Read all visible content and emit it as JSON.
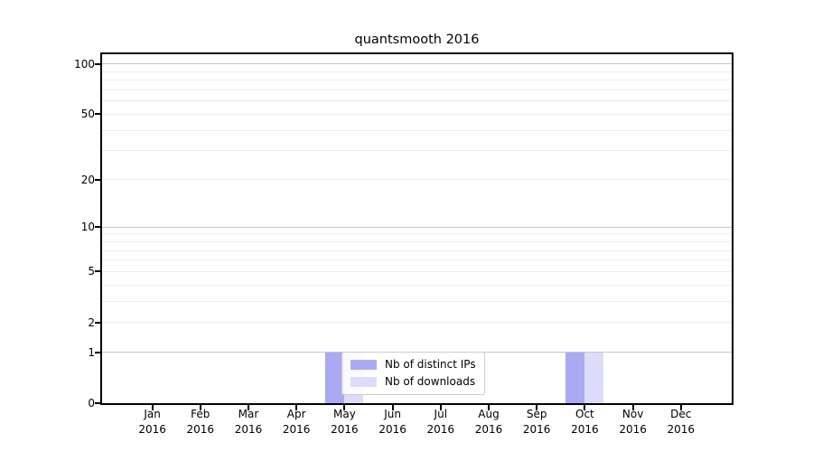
{
  "title": "quantsmooth 2016",
  "chart_data": {
    "type": "bar",
    "title": "quantsmooth 2016",
    "categories": [
      "Jan",
      "Feb",
      "Mar",
      "Apr",
      "May",
      "Jun",
      "Jul",
      "Aug",
      "Sep",
      "Oct",
      "Nov",
      "Dec"
    ],
    "x_year_line": "2016",
    "series": [
      {
        "name": "Nb of distinct IPs",
        "color": "#aaaaf2",
        "values": [
          0,
          0,
          0,
          0,
          1,
          0,
          0,
          0,
          0,
          1,
          0,
          0
        ]
      },
      {
        "name": "Nb of downloads",
        "color": "#dcdcfa",
        "values": [
          0,
          0,
          0,
          0,
          1,
          0,
          0,
          0,
          0,
          1,
          0,
          0
        ]
      }
    ],
    "y_axis": {
      "scale": "log1p",
      "tick_labels": [
        "0",
        "1",
        "2",
        "5",
        "10",
        "20",
        "50",
        "100"
      ],
      "ticks": [
        0,
        1,
        2,
        5,
        10,
        20,
        50,
        100
      ],
      "ylim": [
        0,
        115
      ],
      "gridlines_light": [
        2,
        3,
        4,
        5,
        6,
        7,
        8,
        9,
        20,
        30,
        40,
        50,
        60,
        70,
        80,
        90
      ],
      "gridlines_dark": [
        1,
        10,
        100
      ]
    },
    "legend": {
      "entries": [
        "Nb of distinct IPs",
        "Nb of downloads"
      ],
      "position": "lower-center-overlay"
    },
    "grid": true
  },
  "colors": {
    "background": "#ffffff",
    "axis": "#000000",
    "grid_light": "#ededed",
    "grid_dark": "#c6c6c6",
    "legend_border": "#cccccc",
    "bar_distinct_ips": "#aaaaf2",
    "bar_downloads": "#dcdcfa"
  }
}
